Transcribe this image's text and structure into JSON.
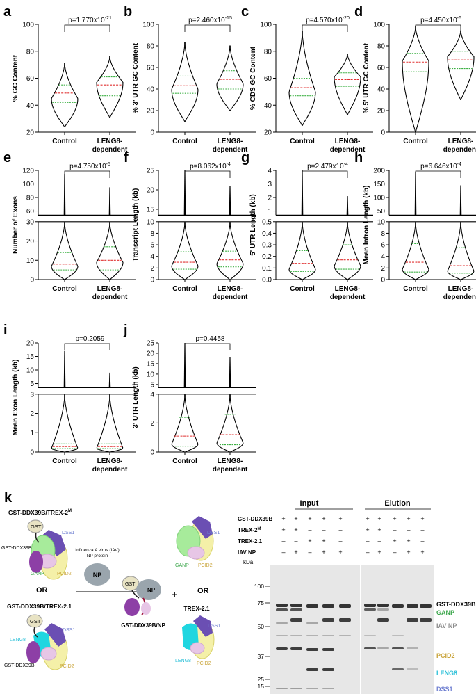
{
  "panels": [
    {
      "letter": "a",
      "ylabel": "% GC Content",
      "pval_base": "p=1.770x10",
      "pval_exp": "-21",
      "yticks": [
        "20",
        "40",
        "60",
        "80",
        "100"
      ],
      "ymin": 20,
      "ymax": 100,
      "broken": false,
      "violins": [
        {
          "min": 24,
          "max": 71,
          "q1": 42,
          "med": 49,
          "q3": 55,
          "mode": 45
        },
        {
          "min": 31,
          "max": 76,
          "q1": 47,
          "med": 55,
          "q3": 61,
          "mode": 57
        }
      ]
    },
    {
      "letter": "b",
      "ylabel": "% 3' UTR GC Content",
      "pval_base": "p=2.460x10",
      "pval_exp": "-15",
      "yticks": [
        "0",
        "20",
        "40",
        "60",
        "80",
        "100"
      ],
      "ymin": 0,
      "ymax": 100,
      "broken": false,
      "violins": [
        {
          "min": 10,
          "max": 83,
          "q1": 36,
          "med": 43,
          "q3": 52,
          "mode": 40
        },
        {
          "min": 20,
          "max": 80,
          "q1": 40,
          "med": 49,
          "q3": 57,
          "mode": 45
        }
      ]
    },
    {
      "letter": "c",
      "ylabel": "% CDS GC Content",
      "pval_base": "p=4.570x10",
      "pval_exp": "-20",
      "yticks": [
        "20",
        "40",
        "60",
        "80",
        "100"
      ],
      "ymin": 20,
      "ymax": 100,
      "broken": false,
      "violins": [
        {
          "min": 25,
          "max": 95,
          "q1": 47,
          "med": 53,
          "q3": 60,
          "mode": 50
        },
        {
          "min": 33,
          "max": 78,
          "q1": 54,
          "med": 59,
          "q3": 64,
          "mode": 61
        }
      ]
    },
    {
      "letter": "d",
      "ylabel": "% 5' UTR GC Content",
      "pval_base": "p=4.450x10",
      "pval_exp": "-6",
      "yticks": [
        "0",
        "20",
        "40",
        "60",
        "80",
        "100"
      ],
      "ymin": 0,
      "ymax": 100,
      "broken": false,
      "violins": [
        {
          "min": 0,
          "max": 98,
          "q1": 56,
          "med": 65,
          "q3": 73,
          "mode": 66
        },
        {
          "min": 30,
          "max": 94,
          "q1": 59,
          "med": 67,
          "q3": 75,
          "mode": 70
        }
      ]
    },
    {
      "letter": "e",
      "ylabel": "Number of Exons",
      "pval_base": "p=4.750x10",
      "pval_exp": "-5",
      "yticks": [
        "0",
        "10",
        "20",
        "30"
      ],
      "upper_ticks": [
        "60",
        "80",
        "100",
        "120"
      ],
      "broken": true,
      "violins": [
        {
          "q1": 5,
          "med": 8,
          "q3": 14,
          "mode": 7,
          "max": 30,
          "upper_top": 115
        },
        {
          "q1": 5,
          "med": 10,
          "q3": 17,
          "mode": 9,
          "max": 30,
          "upper_top": 95
        }
      ]
    },
    {
      "letter": "f",
      "ylabel": "Transcript Length (kb)",
      "pval_base": "p=8.062x10",
      "pval_exp": "-4",
      "yticks": [
        "0",
        "2",
        "4",
        "6",
        "8",
        "10"
      ],
      "upper_ticks": [
        "15",
        "20",
        "25"
      ],
      "broken": true,
      "violins": [
        {
          "q1": 1.8,
          "med": 3.0,
          "q3": 4.8,
          "mode": 2.4,
          "max": 10,
          "upper_top": 25
        },
        {
          "q1": 2.2,
          "med": 3.4,
          "q3": 4.9,
          "mode": 2.8,
          "max": 10,
          "upper_top": 21
        }
      ]
    },
    {
      "letter": "g",
      "ylabel": "5' UTR Length (kb)",
      "pval_base": "p=2.479x10",
      "pval_exp": "-4",
      "yticks": [
        "0.0",
        "0.1",
        "0.2",
        "0.3",
        "0.4",
        "0.5"
      ],
      "upper_ticks": [
        "1",
        "2",
        "3",
        "4"
      ],
      "broken": true,
      "violins": [
        {
          "q1": 0.07,
          "med": 0.14,
          "q3": 0.25,
          "mode": 0.09,
          "max": 0.5,
          "upper_top": 4
        },
        {
          "q1": 0.09,
          "med": 0.17,
          "q3": 0.3,
          "mode": 0.12,
          "max": 0.5,
          "upper_top": 2.1
        }
      ]
    },
    {
      "letter": "h",
      "ylabel": "Mean Intron Length (kb)",
      "pval_base": "p=6.646x10",
      "pval_exp": "-4",
      "yticks": [
        "0",
        "2",
        "4",
        "6",
        "8",
        "10"
      ],
      "upper_ticks": [
        "50",
        "100",
        "150",
        "200"
      ],
      "broken": true,
      "violins": [
        {
          "q1": 1.3,
          "med": 3.0,
          "q3": 6.2,
          "mode": 1.8,
          "max": 10,
          "upper_top": 195
        },
        {
          "q1": 1.1,
          "med": 2.4,
          "q3": 5.5,
          "mode": 1.5,
          "max": 10,
          "upper_top": 145
        }
      ]
    },
    {
      "letter": "i",
      "ylabel": "Mean Exon Length (kb)",
      "pval_base": "p=0.2059",
      "pval_exp": "",
      "yticks": [
        "0",
        "1",
        "2",
        "3"
      ],
      "upper_ticks": [
        "5",
        "10",
        "15",
        "20"
      ],
      "broken": true,
      "violins": [
        {
          "q1": 0.18,
          "med": 0.28,
          "q3": 0.42,
          "mode": 0.2,
          "max": 3,
          "upper_top": 17
        },
        {
          "q1": 0.18,
          "med": 0.28,
          "q3": 0.42,
          "mode": 0.2,
          "max": 3,
          "upper_top": 9
        }
      ]
    },
    {
      "letter": "j",
      "ylabel": "3' UTR Length (kb)",
      "pval_base": "p=0.4458",
      "pval_exp": "",
      "yticks": [
        "0",
        "2",
        "4"
      ],
      "upper_ticks": [
        "5",
        "10",
        "15",
        "20",
        "25"
      ],
      "broken": true,
      "violins": [
        {
          "q1": 0.4,
          "med": 1.1,
          "q3": 2.4,
          "mode": 0.7,
          "max": 5,
          "upper_top": 25
        },
        {
          "q1": 0.5,
          "med": 1.2,
          "q3": 2.6,
          "mode": 0.8,
          "max": 5,
          "upper_top": 18
        }
      ]
    }
  ],
  "xcat": {
    "control": "Control",
    "leng8_line1": "LENG8-",
    "leng8_line2": "dependent"
  },
  "panel_k": {
    "letter": "k",
    "schematic": {
      "trex2m_title": "GST-DDX39B/TREX-2",
      "trex2m_sup": "M",
      "trex21_title": "GST-DDX39B/TREX-2.1",
      "gst": "GST",
      "ddx39b": "GST-DDX39B",
      "dss1": "DSS1",
      "ganp": "GANP",
      "pcid2": "PCID2",
      "leng8": "LENG8",
      "or": "OR",
      "plus": "+",
      "iav_line1": "Influenza A virus (IAV)",
      "iav_line2": "NP protein",
      "np": "NP",
      "product": "GST-DDX39B/NP",
      "trex21": "TREX-2.1"
    },
    "gel": {
      "input_title": "Input",
      "elution_title": "Elution",
      "row_labels": [
        "GST-DDX39B",
        "TREX-2",
        "TREX-2.1",
        "IAV NP"
      ],
      "trex2_sup": "M",
      "input_signs": [
        [
          "+",
          "+",
          "+",
          "+",
          "+"
        ],
        [
          "+",
          "+",
          "–",
          "–",
          "–"
        ],
        [
          "–",
          "–",
          "+",
          "+",
          "–"
        ],
        [
          "–",
          "+",
          "–",
          "+",
          "+"
        ]
      ],
      "elution_signs": [
        [
          "+",
          "+",
          "+",
          "+",
          "+"
        ],
        [
          "+",
          "+",
          "–",
          "–",
          "–"
        ],
        [
          "–",
          "–",
          "+",
          "+",
          "–"
        ],
        [
          "–",
          "+",
          "–",
          "+",
          "+"
        ]
      ],
      "kda_title": "kDa",
      "markers": [
        "100",
        "75",
        "50",
        "37",
        "25",
        "15"
      ],
      "band_labels": [
        "GST-DDX39B",
        "GANP",
        "IAV NP",
        "PCID2",
        "LENG8",
        "DSS1"
      ]
    }
  },
  "colors": {
    "red": "#e03030",
    "green": "#3cb043",
    "ganp": "#3aa64a",
    "iav": "#8c8c8c",
    "pcid2": "#c9a43a",
    "leng8": "#2bc0d8",
    "dss1": "#6f7fd1",
    "gst": "#e8e3c4",
    "purple": "#8d3fa6",
    "cyan": "#1fd6e0",
    "pink": "#e7c6e6",
    "lightgreen": "#a7eb9b",
    "lightyellow": "#f4f0a8"
  }
}
